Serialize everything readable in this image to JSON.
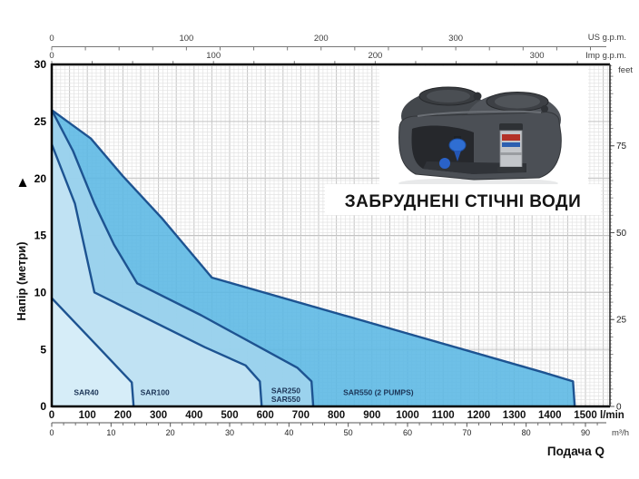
{
  "title": {
    "text": "ЗАБРУДНЕНІ СТІЧНІ ВОДИ"
  },
  "axis_units": {
    "us_gpm": "US g.p.m.",
    "imp_gpm": "Imp g.p.m.",
    "feet": "feet",
    "l_min": "l/min",
    "m3_h": "m³/h",
    "flow": "Подача Q",
    "head": "Напір (метри)"
  },
  "illustration": {
    "name": "double-pump-sewage-lifting-station-cutaway"
  },
  "chart_data": {
    "type": "area",
    "title": "ЗАБРУДНЕНІ СТІЧНІ ВОДИ",
    "xlabel": "Подача Q",
    "ylabel": "Напір (метри)",
    "x_axis": {
      "unit": "l/min",
      "min": 0,
      "max": 1500,
      "ticks": [
        0,
        100,
        200,
        300,
        400,
        500,
        600,
        700,
        800,
        900,
        1000,
        1100,
        1200,
        1300,
        1400,
        1500
      ]
    },
    "x_axis_m3h": {
      "unit": "m³/h",
      "ticks": [
        0,
        10,
        20,
        30,
        40,
        50,
        60,
        70,
        80,
        90
      ],
      "lmin_per_unit": 16.6667
    },
    "x_axis_us_gpm": {
      "unit": "US g.p.m.",
      "ticks": [
        0,
        100,
        200,
        300
      ],
      "lmin_per_unit": 3.785
    },
    "x_axis_imp_gpm": {
      "unit": "Imp g.p.m.",
      "ticks": [
        0,
        100,
        200,
        300
      ],
      "lmin_per_unit": 4.546
    },
    "y_axis": {
      "unit": "м",
      "min": 0,
      "max": 30,
      "ticks": [
        0,
        5,
        10,
        15,
        20,
        25,
        30
      ]
    },
    "y_axis_feet": {
      "unit": "feet",
      "ticks": [
        0,
        25,
        50,
        75
      ],
      "m_per_unit": 0.3048
    },
    "grid": {
      "minor_lmin": 12.5,
      "major_lmin": 50,
      "minor_ft": 1,
      "major_m": 5
    },
    "stroke_color": "#1d5391",
    "label_color": "#1c3557",
    "series": [
      {
        "name": "SAR550 (2 PUMPS)",
        "label_lines": [
          "SAR550 (2 PUMPS)"
        ],
        "fill": "#58b7e3",
        "label_q": 918,
        "label_h": 1.0,
        "points": [
          [
            0,
            26
          ],
          [
            110,
            23.5
          ],
          [
            200,
            20.2
          ],
          [
            310,
            16.5
          ],
          [
            450,
            11.3
          ],
          [
            1000,
            6.4
          ],
          [
            1380,
            3.0
          ],
          [
            1465,
            2.2
          ],
          [
            1470,
            0
          ]
        ]
      },
      {
        "name": "SAR250 / SAR550",
        "label_lines": [
          "SAR250",
          "SAR550"
        ],
        "fill": "#a2d5ee",
        "label_q": 658,
        "label_h": 1.15,
        "points": [
          [
            0,
            26
          ],
          [
            60,
            22.4
          ],
          [
            120,
            17.8
          ],
          [
            175,
            14.2
          ],
          [
            240,
            10.8
          ],
          [
            420,
            8.0
          ],
          [
            690,
            3.4
          ],
          [
            730,
            2.2
          ],
          [
            735,
            0
          ]
        ]
      },
      {
        "name": "SAR100",
        "label_lines": [
          "SAR100"
        ],
        "fill": "#c6e5f4",
        "label_q": 290,
        "label_h": 1.0,
        "points": [
          [
            0,
            23
          ],
          [
            65,
            17.8
          ],
          [
            120,
            10
          ],
          [
            430,
            5.2
          ],
          [
            545,
            3.6
          ],
          [
            585,
            2.2
          ],
          [
            590,
            0
          ]
        ]
      },
      {
        "name": "SAR40",
        "label_lines": [
          "SAR40"
        ],
        "fill": "#d9eef8",
        "label_q": 97,
        "label_h": 1.0,
        "points": [
          [
            0,
            9.5
          ],
          [
            110,
            5.9
          ],
          [
            225,
            2.1
          ],
          [
            230,
            0
          ]
        ]
      }
    ]
  }
}
